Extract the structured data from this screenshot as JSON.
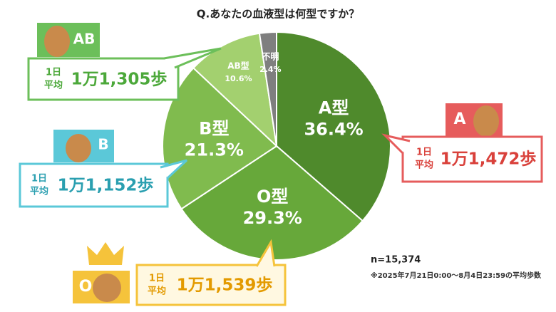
{
  "chart_data": {
    "type": "pie",
    "title": "Q.あなたの血液型は何型ですか？",
    "categories": [
      "A型",
      "O型",
      "B型",
      "AB型",
      "不明"
    ],
    "values": [
      36.4,
      29.3,
      21.3,
      10.6,
      2.4
    ],
    "value_labels": [
      "36.4%",
      "29.3%",
      "21.3%",
      "10.6%",
      "2.4%"
    ],
    "colors": [
      "#4f8a2c",
      "#67a83a",
      "#80bb4e",
      "#a3d06f",
      "#7f7f7f"
    ],
    "sample": "n=15,374",
    "note": "※2025年7月21日0:00〜8月4日23:59の平均歩数"
  },
  "callouts": [
    {
      "badge": "AB",
      "label1": "1日",
      "label2": "平均",
      "steps": "1万1,305歩"
    },
    {
      "badge": "B",
      "label1": "1日",
      "label2": "平均",
      "steps": "1万1,152歩"
    },
    {
      "badge": "A",
      "label1": "1日",
      "label2": "平均",
      "steps": "1万1,472歩"
    },
    {
      "badge": "O",
      "label1": "1日",
      "label2": "平均",
      "steps": "1万1,539歩"
    }
  ]
}
